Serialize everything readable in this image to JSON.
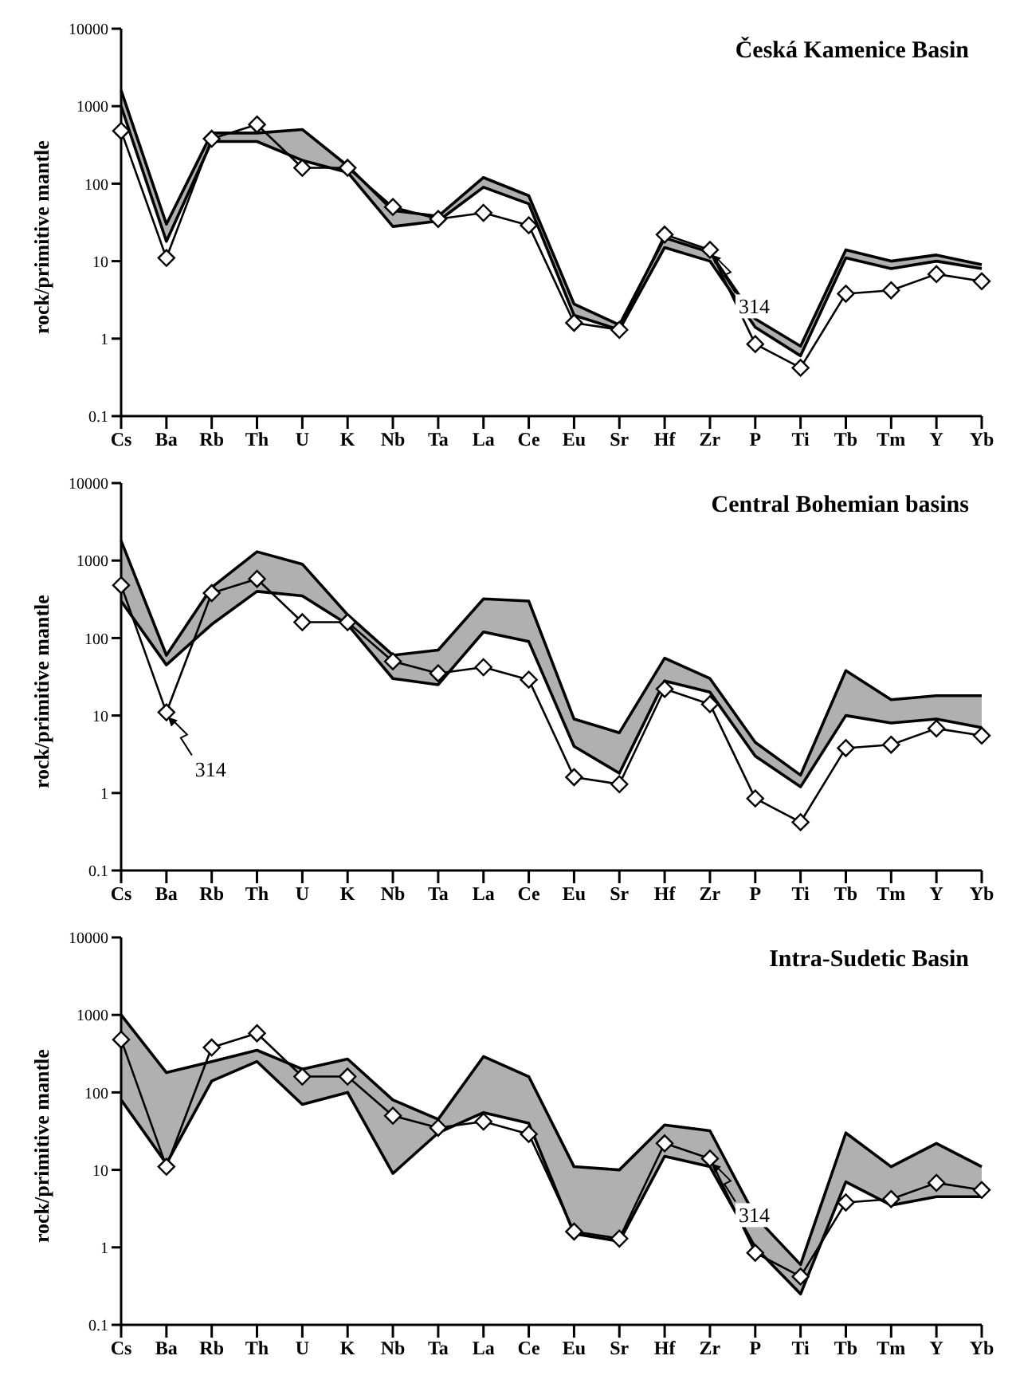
{
  "chart_data": [
    {
      "type": "line",
      "title": "Česká Kamenice Basin",
      "ylabel": "rock/primitive mantle",
      "categories": [
        "Cs",
        "Ba",
        "Rb",
        "Th",
        "U",
        "K",
        "Nb",
        "Ta",
        "La",
        "Ce",
        "Eu",
        "Sr",
        "Hf",
        "Zr",
        "P",
        "Ti",
        "Tb",
        "Tm",
        "Y",
        "Yb"
      ],
      "log": "y",
      "ylim": [
        0.1,
        10000
      ],
      "yticks": [
        0.1,
        1,
        10,
        100,
        1000,
        10000
      ],
      "grid": false,
      "legend": false,
      "annotations": [
        {
          "text": "314",
          "x": "Zr",
          "y": 14
        }
      ],
      "series": [
        {
          "color": "#000000",
          "marker": "none",
          "values": [
            1600,
            30,
            450,
            450,
            500,
            170,
            45,
            38,
            120,
            70,
            2.8,
            1.5,
            20,
            13,
            1.8,
            0.8,
            14,
            10,
            12,
            9
          ],
          "lower": [
            1000,
            18,
            350,
            350,
            200,
            140,
            28,
            33,
            90,
            55,
            2,
            1.3,
            15,
            10,
            1.4,
            0.6,
            11,
            8,
            10,
            8
          ],
          "upper": [
            1600,
            30,
            450,
            450,
            500,
            170,
            45,
            38,
            120,
            70,
            2.8,
            1.5,
            20,
            13,
            1.8,
            0.8,
            14,
            10,
            12,
            9
          ]
        },
        {
          "color": "#000000",
          "marker": "none",
          "values": [
            1000,
            18,
            350,
            350,
            200,
            140,
            28,
            33,
            90,
            55,
            2,
            1.3,
            15,
            10,
            1.4,
            0.6,
            11,
            8,
            10,
            8
          ]
        },
        {
          "color": "#000000",
          "marker": "diamond",
          "values": [
            480,
            11,
            380,
            580,
            160,
            160,
            50,
            35,
            42,
            29,
            1.6,
            1.3,
            22,
            14,
            0.85,
            0.42,
            3.8,
            4.2,
            6.8,
            5.5
          ]
        }
      ]
    },
    {
      "type": "line",
      "title": "Central Bohemian basins",
      "ylabel": "rock/primitive mantle",
      "categories": [
        "Cs",
        "Ba",
        "Rb",
        "Th",
        "U",
        "K",
        "Nb",
        "Ta",
        "La",
        "Ce",
        "Eu",
        "Sr",
        "Hf",
        "Zr",
        "P",
        "Ti",
        "Tb",
        "Tm",
        "Y",
        "Yb"
      ],
      "log": "y",
      "ylim": [
        0.1,
        10000
      ],
      "yticks": [
        0.1,
        1,
        10,
        100,
        1000,
        10000
      ],
      "grid": false,
      "legend": false,
      "annotations": [
        {
          "text": "314",
          "x": "Ba",
          "y": 11
        }
      ],
      "series": [
        {
          "color": "#000000",
          "marker": "none",
          "values": [
            1800,
            60,
            450,
            1300,
            900,
            200,
            60,
            70,
            320,
            300,
            9,
            6,
            55,
            30,
            4.5,
            1.7,
            38,
            16,
            18,
            18
          ],
          "lower": [
            300,
            45,
            150,
            400,
            350,
            150,
            30,
            25,
            120,
            90,
            4,
            1.8,
            28,
            20,
            3,
            1.2,
            10,
            8,
            9,
            7
          ],
          "upper": [
            1800,
            60,
            450,
            1300,
            900,
            200,
            60,
            70,
            320,
            300,
            9,
            6,
            55,
            30,
            4.5,
            1.7,
            38,
            16,
            18,
            18
          ]
        },
        {
          "color": "#000000",
          "marker": "none",
          "values": [
            300,
            45,
            150,
            400,
            350,
            150,
            30,
            25,
            120,
            90,
            4,
            1.8,
            28,
            20,
            3,
            1.2,
            10,
            8,
            9,
            7
          ]
        },
        {
          "color": "#000000",
          "marker": "diamond",
          "values": [
            480,
            11,
            380,
            580,
            160,
            160,
            50,
            35,
            42,
            29,
            1.6,
            1.3,
            22,
            14,
            0.85,
            0.42,
            3.8,
            4.2,
            6.8,
            5.5
          ]
        }
      ]
    },
    {
      "type": "line",
      "title": "Intra-Sudetic Basin",
      "ylabel": "rock/primitive mantle",
      "categories": [
        "Cs",
        "Ba",
        "Rb",
        "Th",
        "U",
        "K",
        "Nb",
        "Ta",
        "La",
        "Ce",
        "Eu",
        "Sr",
        "Hf",
        "Zr",
        "P",
        "Ti",
        "Tb",
        "Tm",
        "Y",
        "Yb"
      ],
      "log": "y",
      "ylim": [
        0.1,
        10000
      ],
      "yticks": [
        0.1,
        1,
        10,
        100,
        1000,
        10000
      ],
      "grid": false,
      "legend": false,
      "annotations": [
        {
          "text": "314",
          "x": "Zr",
          "y": 14
        }
      ],
      "series": [
        {
          "color": "#000000",
          "marker": "none",
          "values": [
            1000,
            180,
            250,
            350,
            200,
            270,
            80,
            45,
            290,
            160,
            11,
            10,
            38,
            32,
            2.5,
            0.6,
            30,
            11,
            22,
            11
          ],
          "lower": [
            80,
            12,
            140,
            250,
            70,
            100,
            9,
            30,
            55,
            40,
            1.5,
            1.2,
            15,
            11,
            1,
            0.25,
            7,
            3.5,
            4.5,
            4.5
          ],
          "upper": [
            1000,
            180,
            250,
            350,
            200,
            270,
            80,
            45,
            290,
            160,
            11,
            10,
            38,
            32,
            2.5,
            0.6,
            30,
            11,
            22,
            11
          ]
        },
        {
          "color": "#000000",
          "marker": "none",
          "values": [
            80,
            12,
            140,
            250,
            70,
            100,
            9,
            30,
            55,
            40,
            1.5,
            1.2,
            15,
            11,
            1,
            0.25,
            7,
            3.5,
            4.5,
            4.5
          ]
        },
        {
          "color": "#000000",
          "marker": "diamond",
          "values": [
            480,
            11,
            380,
            580,
            160,
            160,
            50,
            35,
            42,
            29,
            1.6,
            1.3,
            22,
            14,
            0.85,
            0.42,
            3.8,
            4.2,
            6.8,
            5.5
          ]
        }
      ]
    }
  ]
}
